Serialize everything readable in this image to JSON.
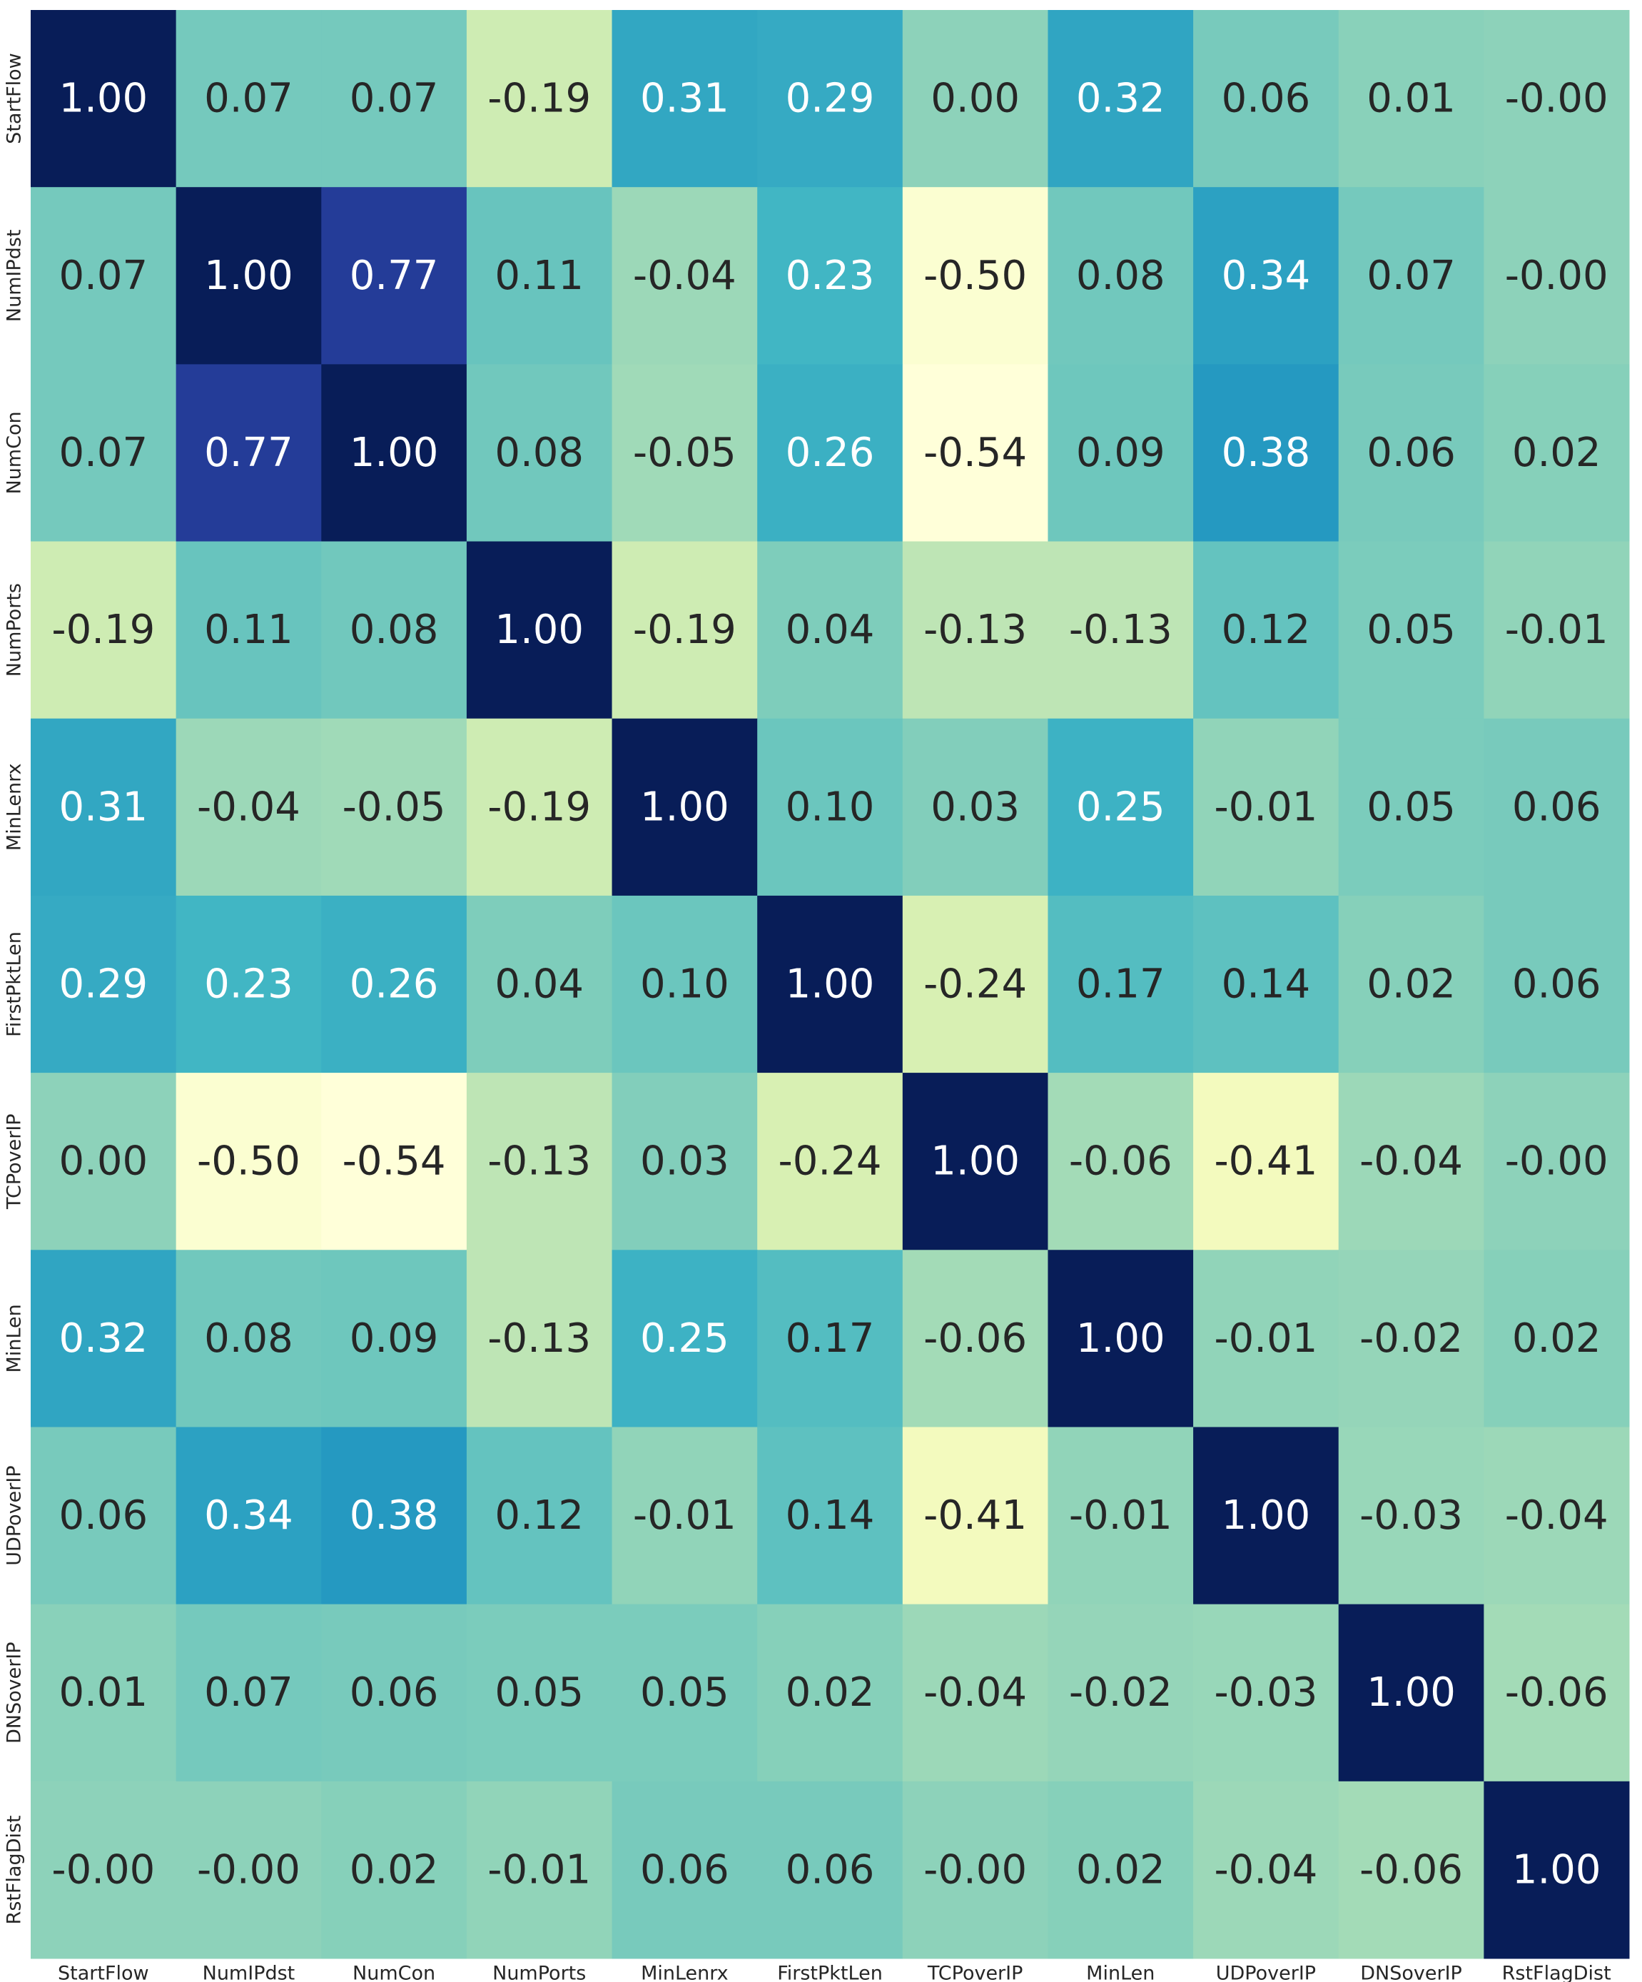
{
  "chart_data": {
    "type": "heatmap",
    "colormap": "YlGnBu",
    "x_categories": [
      "StartFlow",
      "NumIPdst",
      "NumCon",
      "NumPorts",
      "MinLenrx",
      "FirstPktLen",
      "TCPoverIP",
      "MinLen",
      "UDPoverIP",
      "DNSoverIP",
      "RstFlagDist"
    ],
    "y_categories": [
      "StartFlow",
      "NumIPdst",
      "NumCon",
      "NumPorts",
      "MinLenrx",
      "FirstPktLen",
      "TCPoverIP",
      "MinLen",
      "UDPoverIP",
      "DNSoverIP",
      "RstFlagDist"
    ],
    "values": [
      [
        1,
        0.07,
        0.07,
        -0.19,
        0.31,
        0.29,
        0,
        0.32,
        0.06,
        0.01,
        0
      ],
      [
        0.07,
        1,
        0.77,
        0.11,
        -0.04,
        0.23,
        -0.5,
        0.08,
        0.34,
        0.07,
        0
      ],
      [
        0.07,
        0.77,
        1,
        0.08,
        -0.05,
        0.26,
        -0.54,
        0.09,
        0.38,
        0.06,
        0.02
      ],
      [
        -0.19,
        0.11,
        0.08,
        1,
        -0.19,
        0.04,
        -0.13,
        -0.13,
        0.12,
        0.05,
        -0.01
      ],
      [
        0.31,
        -0.04,
        -0.05,
        -0.19,
        1,
        0.1,
        0.03,
        0.25,
        -0.01,
        0.05,
        0.06
      ],
      [
        0.29,
        0.23,
        0.26,
        0.04,
        0.1,
        1,
        -0.24,
        0.17,
        0.14,
        0.02,
        0.06
      ],
      [
        0,
        -0.5,
        -0.54,
        -0.13,
        0.03,
        -0.24,
        1,
        -0.06,
        -0.41,
        -0.04,
        0
      ],
      [
        0.32,
        0.08,
        0.09,
        -0.13,
        0.25,
        0.17,
        -0.06,
        1,
        -0.01,
        -0.02,
        0.02
      ],
      [
        0.06,
        0.34,
        0.38,
        0.12,
        -0.01,
        0.14,
        -0.41,
        -0.01,
        1,
        -0.03,
        -0.04
      ],
      [
        0.01,
        0.07,
        0.06,
        0.05,
        0.05,
        0.02,
        -0.04,
        -0.02,
        -0.03,
        1,
        -0.06
      ],
      [
        0,
        0,
        0.02,
        -0.01,
        0.06,
        0.06,
        0,
        0.02,
        -0.04,
        -0.06,
        1
      ]
    ],
    "value_labels": [
      [
        "1.00",
        "0.07",
        "0.07",
        "-0.19",
        "0.31",
        "0.29",
        "0.00",
        "0.32",
        "0.06",
        "0.01",
        "-0.00"
      ],
      [
        "0.07",
        "1.00",
        "0.77",
        "0.11",
        "-0.04",
        "0.23",
        "-0.50",
        "0.08",
        "0.34",
        "0.07",
        "-0.00"
      ],
      [
        "0.07",
        "0.77",
        "1.00",
        "0.08",
        "-0.05",
        "0.26",
        "-0.54",
        "0.09",
        "0.38",
        "0.06",
        "0.02"
      ],
      [
        "-0.19",
        "0.11",
        "0.08",
        "1.00",
        "-0.19",
        "0.04",
        "-0.13",
        "-0.13",
        "0.12",
        "0.05",
        "-0.01"
      ],
      [
        "0.31",
        "-0.04",
        "-0.05",
        "-0.19",
        "1.00",
        "0.10",
        "0.03",
        "0.25",
        "-0.01",
        "0.05",
        "0.06"
      ],
      [
        "0.29",
        "0.23",
        "0.26",
        "0.04",
        "0.10",
        "1.00",
        "-0.24",
        "0.17",
        "0.14",
        "0.02",
        "0.06"
      ],
      [
        "0.00",
        "-0.50",
        "-0.54",
        "-0.13",
        "0.03",
        "-0.24",
        "1.00",
        "-0.06",
        "-0.41",
        "-0.04",
        "-0.00"
      ],
      [
        "0.32",
        "0.08",
        "0.09",
        "-0.13",
        "0.25",
        "0.17",
        "-0.06",
        "1.00",
        "-0.01",
        "-0.02",
        "0.02"
      ],
      [
        "0.06",
        "0.34",
        "0.38",
        "0.12",
        "-0.01",
        "0.14",
        "-0.41",
        "-0.01",
        "1.00",
        "-0.03",
        "-0.04"
      ],
      [
        "0.01",
        "0.07",
        "0.06",
        "0.05",
        "0.05",
        "0.02",
        "-0.04",
        "-0.02",
        "-0.03",
        "1.00",
        "-0.06"
      ],
      [
        "-0.00",
        "-0.00",
        "0.02",
        "-0.01",
        "0.06",
        "0.06",
        "-0.00",
        "0.02",
        "-0.04",
        "-0.06",
        "1.00"
      ]
    ]
  }
}
